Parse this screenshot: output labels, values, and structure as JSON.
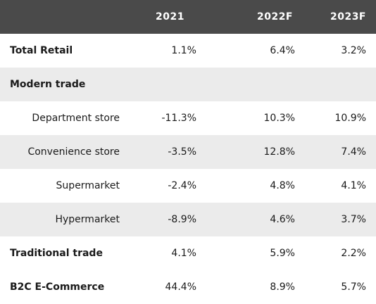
{
  "header": {
    "label": "",
    "col1": "2021",
    "col2": "2022F",
    "col3": "2023F"
  },
  "rows": [
    {
      "label": "Total Retail",
      "v1": "1.1%",
      "v2": "6.4%",
      "v3": "3.2%"
    },
    {
      "label": "Modern trade",
      "v1": "",
      "v2": "",
      "v3": ""
    },
    {
      "label": "Department store",
      "v1": "-11.3%",
      "v2": "10.3%",
      "v3": "10.9%"
    },
    {
      "label": "Convenience store",
      "v1": "-3.5%",
      "v2": "12.8%",
      "v3": "7.4%"
    },
    {
      "label": "Supermarket",
      "v1": "-2.4%",
      "v2": "4.8%",
      "v3": "4.1%"
    },
    {
      "label": "Hypermarket",
      "v1": "-8.9%",
      "v2": "4.6%",
      "v3": "3.7%"
    },
    {
      "label": "Traditional trade",
      "v1": "4.1%",
      "v2": "5.9%",
      "v3": "2.2%"
    },
    {
      "label": "B2C E-Commerce",
      "v1": "44.4%",
      "v2": "8.9%",
      "v3": "5.7%"
    }
  ],
  "colors": {
    "header_bg": "#4a4a4a",
    "shaded_bg": "#ebebeb"
  }
}
